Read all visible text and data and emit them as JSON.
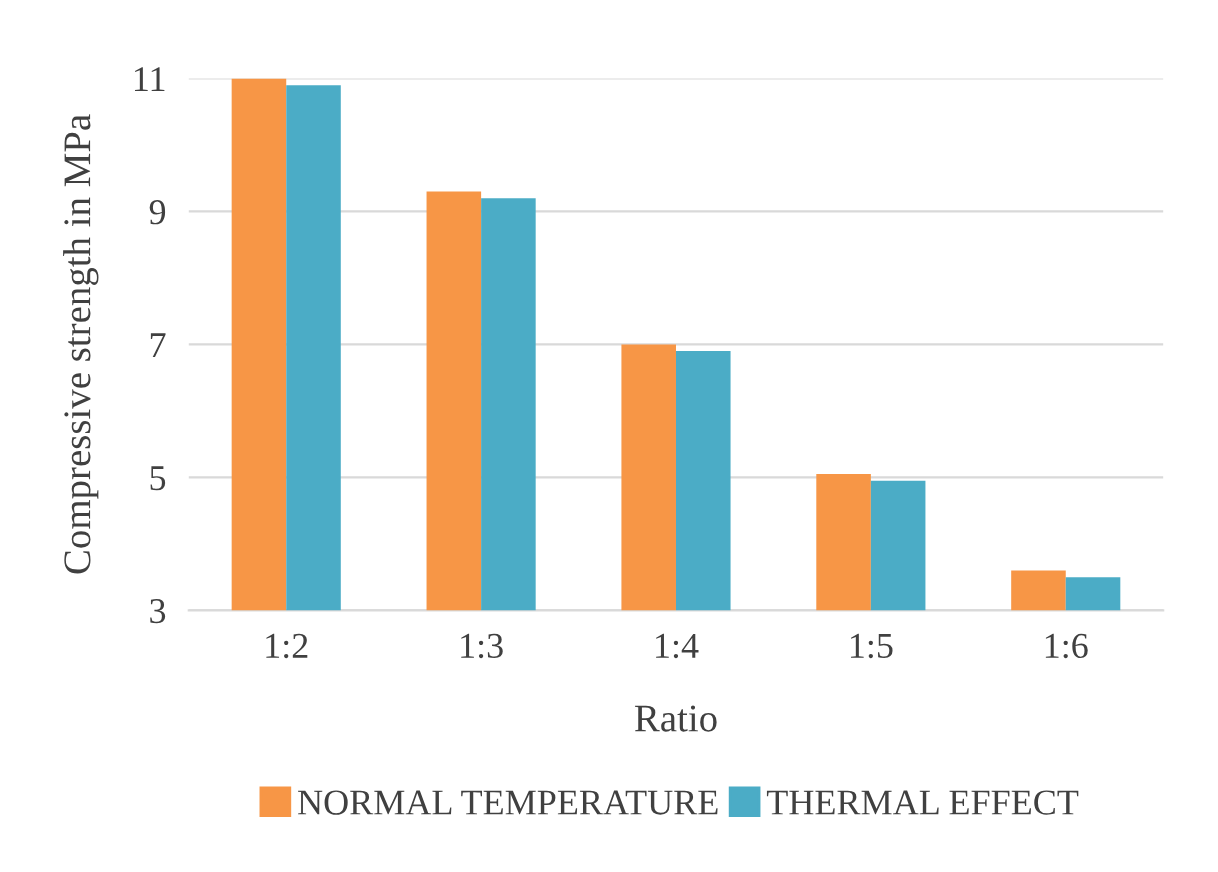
{
  "chart_data": {
    "type": "bar",
    "xlabel": "Ratio",
    "ylabel": "Compressive strength in MPa",
    "categories": [
      "1:2",
      "1:3",
      "1:4",
      "1:5",
      "1:6"
    ],
    "series": [
      {
        "name": "NORMAL TEMPERATURE",
        "color": "#f79646",
        "values": [
          11.0,
          9.3,
          7.0,
          5.05,
          3.6
        ]
      },
      {
        "name": "THERMAL EFFECT",
        "color": "#4bacc6",
        "values": [
          10.9,
          9.2,
          6.9,
          4.95,
          3.5
        ]
      }
    ],
    "ylim": [
      3,
      11
    ],
    "yticks": [
      3,
      5,
      7,
      9,
      11
    ],
    "grid": "y",
    "legend": "bottom"
  }
}
